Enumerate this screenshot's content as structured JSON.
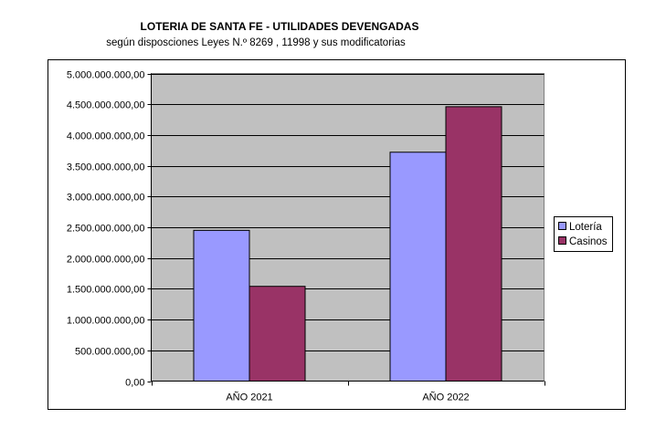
{
  "chart_data": {
    "type": "bar",
    "title": "LOTERIA DE SANTA FE - UTILIDADES DEVENGADAS",
    "subtitle": "según disposciones Leyes N.º 8269 , 11998 y sus modificatorias",
    "categories": [
      "AÑO 2021",
      "AÑO 2022"
    ],
    "series": [
      {
        "name": "Lotería",
        "values": [
          2450000000,
          3720000000
        ],
        "color": "#9999ff"
      },
      {
        "name": "Casinos",
        "values": [
          1540000000,
          4460000000
        ],
        "color": "#993366"
      }
    ],
    "ylim": [
      0,
      5000000000
    ],
    "yticks": [
      {
        "value": 0,
        "label": "0,00"
      },
      {
        "value": 500000000,
        "label": "500.000.000,00"
      },
      {
        "value": 1000000000,
        "label": "1.000.000.000,00"
      },
      {
        "value": 1500000000,
        "label": "1.500.000.000,00"
      },
      {
        "value": 2000000000,
        "label": "2.000.000.000,00"
      },
      {
        "value": 2500000000,
        "label": "2.500.000.000,00"
      },
      {
        "value": 3000000000,
        "label": "3.000.000.000,00"
      },
      {
        "value": 3500000000,
        "label": "3.500.000.000,00"
      },
      {
        "value": 4000000000,
        "label": "4.000.000.000,00"
      },
      {
        "value": 4500000000,
        "label": "4.500.000.000,00"
      },
      {
        "value": 5000000000,
        "label": "5.000.000.000,00"
      }
    ],
    "grid": true,
    "plot_background": "#c0c0c0",
    "legend_position": "right"
  }
}
